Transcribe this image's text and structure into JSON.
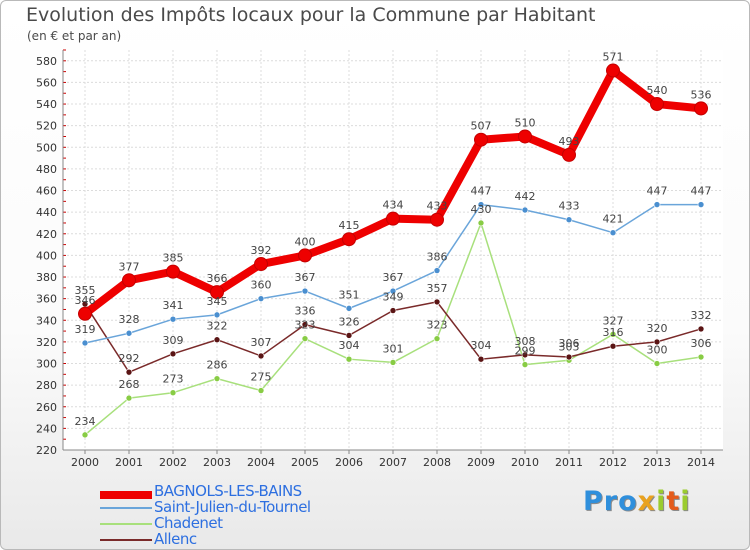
{
  "title": "Evolution des Impôts locaux pour la Commune par Habitant",
  "subtitle": "(en € et par an)",
  "logo": {
    "p": "Pro",
    "x": "x",
    "i": "i",
    "t": "t",
    "i2": "i"
  },
  "chart_data": {
    "type": "line",
    "x": [
      "2000",
      "2001",
      "2002",
      "2003",
      "2004",
      "2005",
      "2006",
      "2007",
      "2008",
      "2009",
      "2010",
      "2011",
      "2012",
      "2013",
      "2014"
    ],
    "ylim": [
      220,
      590
    ],
    "yticks": [
      220,
      240,
      260,
      280,
      300,
      320,
      340,
      360,
      380,
      400,
      420,
      440,
      460,
      480,
      500,
      520,
      540,
      560,
      580
    ],
    "grid": true,
    "series": [
      {
        "name": "BAGNOLS-LES-BAINS",
        "color": "#ee0000",
        "dot": "#ee0000",
        "values": [
          346,
          377,
          385,
          366,
          392,
          400,
          415,
          434,
          433,
          507,
          510,
          493,
          571,
          540,
          536
        ]
      },
      {
        "name": "Saint-Julien-du-Tournel",
        "color": "#6aa5da",
        "dot": "#4a8fd0",
        "values": [
          319,
          328,
          341,
          345,
          360,
          367,
          351,
          367,
          386,
          447,
          442,
          433,
          421,
          447,
          447
        ]
      },
      {
        "name": "Chadenet",
        "color": "#a8e07c",
        "dot": "#88cc44",
        "values": [
          234,
          268,
          273,
          286,
          275,
          323,
          304,
          301,
          323,
          430,
          299,
          303,
          327,
          300,
          306
        ]
      },
      {
        "name": "Allenc",
        "color": "#7a2a2a",
        "dot": "#5a1414",
        "values": [
          355,
          292,
          309,
          322,
          307,
          336,
          326,
          349,
          357,
          304,
          308,
          306,
          316,
          320,
          332
        ]
      }
    ]
  }
}
